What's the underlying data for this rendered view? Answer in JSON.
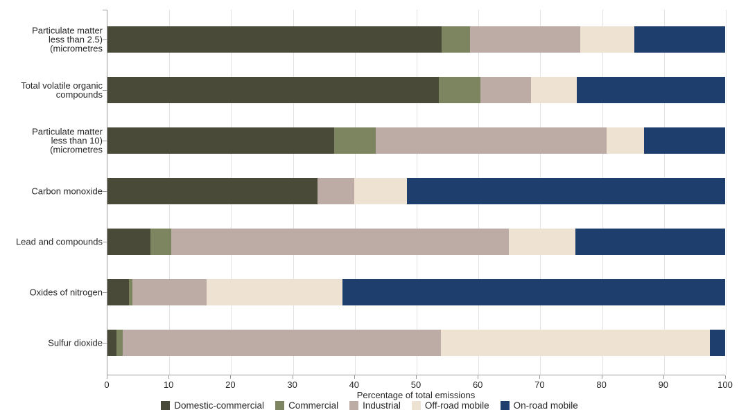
{
  "chart_data": {
    "type": "bar",
    "orientation": "horizontal",
    "stacked": true,
    "title": "",
    "xlabel": "Percentage of total emissions",
    "xlim": [
      0,
      100
    ],
    "xticks": [
      0,
      10,
      20,
      30,
      40,
      50,
      60,
      70,
      80,
      90,
      100
    ],
    "grid": true,
    "legend_position": "bottom",
    "categories": [
      {
        "label": "Particulate matter less than 2.5) (micrometres",
        "lines": [
          "Particulate matter",
          "less than 2.5)",
          "(micrometres"
        ]
      },
      {
        "label": "Total volatile organic compounds",
        "lines": [
          "Total volatile organic",
          "compounds"
        ]
      },
      {
        "label": "Particulate matter less than 10) (micrometres",
        "lines": [
          "Particulate matter",
          "less than 10)",
          "(micrometres"
        ]
      },
      {
        "label": "Carbon monoxide",
        "lines": [
          "Carbon monoxide"
        ]
      },
      {
        "label": "Lead and compounds",
        "lines": [
          "Lead and compounds"
        ]
      },
      {
        "label": "Oxides of nitrogen",
        "lines": [
          "Oxides of nitrogen"
        ]
      },
      {
        "label": "Sulfur dioxide",
        "lines": [
          "Sulfur dioxide"
        ]
      }
    ],
    "series": [
      {
        "name": "Domestic-commercial",
        "color": "#4a4a38",
        "values": [
          54.1,
          53.6,
          36.7,
          34.0,
          7.0,
          3.5,
          1.5
        ]
      },
      {
        "name": "Commercial",
        "color": "#7c855f",
        "values": [
          4.6,
          6.8,
          6.7,
          0.0,
          3.3,
          0.5,
          1.0
        ]
      },
      {
        "name": "Industrial",
        "color": "#bdaba5",
        "values": [
          17.8,
          8.2,
          37.4,
          6.0,
          54.7,
          12.0,
          51.5
        ]
      },
      {
        "name": "Off-road mobile",
        "color": "#eee2d3",
        "values": [
          8.8,
          7.4,
          6.1,
          8.5,
          10.8,
          22.0,
          43.5
        ]
      },
      {
        "name": "On-road mobile",
        "color": "#1e3e6d",
        "values": [
          14.7,
          24.0,
          13.1,
          51.5,
          24.2,
          62.0,
          2.5
        ]
      }
    ]
  },
  "colors": {
    "axis": "#9a9a9a",
    "grid": "#e3e3e3",
    "text": "#262626",
    "background": "#ffffff"
  }
}
